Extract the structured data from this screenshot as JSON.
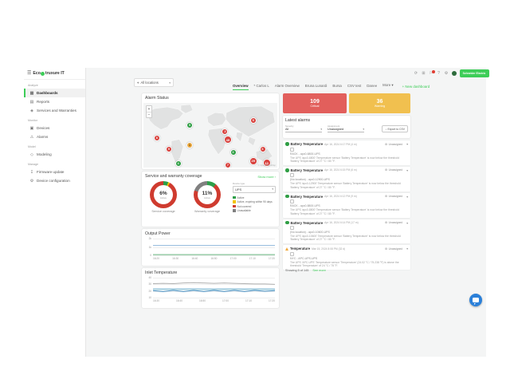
{
  "brand": {
    "pre": "Eco",
    "post": "truxure IT",
    "schneider_label": "Schneider Electric"
  },
  "topbar": {
    "icons": [
      {
        "name": "refresh-icon",
        "glyph": "⟳"
      },
      {
        "name": "apps-grid-icon",
        "glyph": "⊞"
      },
      {
        "name": "notifications-icon",
        "glyph": "⚐",
        "badge": true
      },
      {
        "name": "help-icon",
        "glyph": "?"
      },
      {
        "name": "settings-icon",
        "glyph": "⚙"
      },
      {
        "name": "avatar",
        "avatar": true
      }
    ]
  },
  "sidebar": {
    "sections": [
      {
        "label": "Analyze",
        "items": [
          {
            "label": "Dashboards",
            "icon": "dashboards",
            "glyph": "▦",
            "active": true
          },
          {
            "label": "Reports",
            "icon": "reports",
            "glyph": "▤"
          },
          {
            "label": "Services and Warranties",
            "icon": "services",
            "glyph": "◈"
          }
        ]
      },
      {
        "label": "Monitor",
        "items": [
          {
            "label": "Devices",
            "icon": "devices",
            "glyph": "▣"
          },
          {
            "label": "Alarms",
            "icon": "alarms",
            "glyph": "⚠"
          }
        ]
      },
      {
        "label": "Model",
        "items": [
          {
            "label": "Modeling",
            "icon": "modeling",
            "glyph": "◇"
          }
        ]
      },
      {
        "label": "Manage",
        "items": [
          {
            "label": "Firmware update",
            "icon": "firmware-update",
            "glyph": "↧"
          },
          {
            "label": "Device configuration",
            "icon": "device-configuration",
            "glyph": "⚙"
          }
        ]
      }
    ]
  },
  "toolbar": {
    "location_filter": "All locations",
    "tabs": [
      {
        "label": "Overview",
        "active": true
      },
      {
        "label": "* Carlos L"
      },
      {
        "label": "Alarm Overview"
      },
      {
        "label": "Bruna Lunardi"
      },
      {
        "label": "Bursa"
      },
      {
        "label": "CSV test"
      },
      {
        "label": "Danee"
      },
      {
        "label": "More ▾"
      }
    ],
    "new_dashboard": "+ New dashboard"
  },
  "alarm_status": {
    "title": "Alarm Status",
    "zoom_in": "+",
    "zoom_out": "−",
    "attribution": "© OpenStreetMap",
    "markers": [
      {
        "count": "8",
        "color": "red",
        "x": 10,
        "y": 54
      },
      {
        "count": "9",
        "color": "red",
        "x": 19,
        "y": 71
      },
      {
        "count": "1",
        "color": "orange",
        "x": 34.5,
        "y": 65
      },
      {
        "count": "5",
        "color": "green",
        "x": 34.5,
        "y": 34
      },
      {
        "count": "2",
        "color": "red",
        "x": 61,
        "y": 44
      },
      {
        "count": "49",
        "color": "red",
        "x": 63,
        "y": 57
      },
      {
        "count": "3",
        "color": "green",
        "x": 67,
        "y": 77
      },
      {
        "count": "5",
        "color": "red",
        "x": 82,
        "y": 27
      },
      {
        "count": "6",
        "color": "red",
        "x": 89,
        "y": 71
      },
      {
        "count": "29",
        "color": "red",
        "x": 82,
        "y": 90
      },
      {
        "count": "13",
        "color": "red",
        "x": 92,
        "y": 93
      },
      {
        "count": "4",
        "color": "green",
        "x": 26,
        "y": 94
      },
      {
        "count": "7",
        "color": "red",
        "x": 63,
        "y": 96
      }
    ]
  },
  "coverage": {
    "title": "Service and warranty coverage",
    "show_more": "Show more ›",
    "filter_label": "Device type",
    "filter_value": "UPS",
    "legend": [
      {
        "label": "Active",
        "color": "#2e9e49"
      },
      {
        "label": "Active, expiring within 90 days",
        "color": "#f3c300"
      },
      {
        "label": "Not covered",
        "color": "#cf3b2f"
      },
      {
        "label": "Unavailable",
        "color": "#808080"
      }
    ]
  },
  "alarm_summary": {
    "critical": {
      "count": "109",
      "label": "Critical"
    },
    "warning": {
      "count": "36",
      "label": "Warning"
    }
  },
  "latest_alarms": {
    "title": "Latest alarms",
    "filters": [
      {
        "label": "Severity",
        "value": "All"
      },
      {
        "label": "Assignment",
        "value": "Unassigned"
      }
    ],
    "export_label": "Export to CSV",
    "items": [
      {
        "severity": "cleared",
        "title": "Battery Temperature",
        "time": "Apr 16, 2024 6:17 PM (4 m)",
        "assignee": "Unassigned",
        "device": "RACK - apc0-6800-UPS",
        "description": "The UPS 'apc0-6800' Temperature sensor 'Battery Temperature' is now below the threshold 'Battery Temperature' of 27 °C / 80 °F."
      },
      {
        "severity": "cleared",
        "title": "Battery Temperature",
        "time": "Apr 16, 2024 6:15 PM (6 m)",
        "assignee": "Unassigned",
        "device": "(No location) - apc0-12900-UPS",
        "description": "The UPS 'apc0-12900' Temperature sensor 'Battery Temperature' is now below the threshold 'Battery Temperature' of 27 °C / 80 °F."
      },
      {
        "severity": "cleared",
        "title": "Battery Temperature",
        "time": "Apr 16, 2024 6:12 PM (9 m)",
        "assignee": "Unassigned",
        "device": "RACK - apc0-8800-UPS",
        "description": "The UPS 'apc0-8800' Temperature sensor 'Battery Temperature' is now below the threshold 'Battery Temperature' of 27 °C / 80 °F."
      },
      {
        "severity": "cleared",
        "title": "Battery Temperature",
        "time": "Apr 16, 2024 6:14 PM (17 m)",
        "assignee": "Unassigned",
        "device": "(No location) - apc0-10600-UPS",
        "description": "The UPS 'apc0-10600' Temperature sensor 'Battery Temperature' is now below the threshold 'Battery Temperature' of 27 °C / 80 °F."
      },
      {
        "severity": "warning",
        "title": "Temperature",
        "time": "Mar 15, 2024 8:08 PM (32 d)",
        "assignee": "Unassigned",
        "device": "NYC - APC-UPS-UPS",
        "description": "The UPS 'APC-UPS' Temperature sensor 'Temperature' (24.02 °C / 75.238 °F) is above the threshold 'Temperature' of 24 °C / 75 °F."
      }
    ],
    "footer": "Showing 5 of 145",
    "see_more": "See more"
  },
  "chart_data": {
    "service_coverage": {
      "type": "pie",
      "label": "Service coverage",
      "center_value": "6%",
      "center_sub": "Active",
      "segments": [
        {
          "name": "Active",
          "color": "#2e9e49",
          "pct": 6
        },
        {
          "name": "Active, expiring within 90 days",
          "color": "#f3c300",
          "pct": 2
        },
        {
          "name": "Not covered",
          "color": "#cf3b2f",
          "pct": 92
        }
      ]
    },
    "warranty_coverage": {
      "type": "pie",
      "label": "Warranty coverage",
      "center_value": "11%",
      "center_sub": "Active",
      "segments": [
        {
          "name": "Active",
          "color": "#2e9e49",
          "pct": 11
        },
        {
          "name": "Not covered",
          "color": "#cf3b2f",
          "pct": 69
        },
        {
          "name": "Unavailable",
          "color": "#808080",
          "pct": 20
        }
      ]
    },
    "output_power": {
      "type": "line",
      "title": "Output Power",
      "x": [
        "16:20",
        "16:30",
        "16:40",
        "16:50",
        "17:00",
        "17:10",
        "17:20"
      ],
      "ylim": [
        0,
        2000
      ],
      "yticks": [
        "2k",
        "1k",
        "0"
      ],
      "series": [
        {
          "name": "series-1",
          "color": "#8fb8dc",
          "values": [
            1180,
            1180,
            1182,
            1180,
            1180,
            1183,
            1180,
            1180,
            1180,
            1182,
            1180,
            1180,
            1180
          ]
        },
        {
          "name": "series-2",
          "color": "#66b47e",
          "values": [
            80,
            80,
            82,
            80,
            80,
            80,
            81,
            80,
            80,
            80,
            82,
            80,
            80
          ]
        }
      ]
    },
    "inlet_temperature": {
      "type": "line",
      "title": "Inlet Temperature",
      "x": [
        "16:30",
        "16:40",
        "16:50",
        "17:00",
        "17:10",
        "17:20"
      ],
      "ylim": [
        10,
        40
      ],
      "yticks": [
        "40",
        "30",
        "20",
        "10"
      ],
      "series": [
        {
          "name": "series-1",
          "color": "#b0b0b0",
          "values": [
            31,
            31.5,
            31,
            32,
            32.5,
            32,
            31.5,
            32,
            31.5,
            31,
            30.5,
            30.5,
            30
          ]
        },
        {
          "name": "series-2",
          "color": "#aacfe4",
          "values": [
            23.5,
            23.5,
            23.4,
            23.5,
            23.6,
            23.5,
            23.4,
            23.5,
            23.5,
            23.4,
            23.5,
            23.5,
            23.4
          ]
        },
        {
          "name": "series-3",
          "color": "#8fc3d4",
          "values": [
            22,
            22,
            22.1,
            22,
            22,
            21.9,
            22,
            22,
            22.1,
            22,
            22,
            22,
            22
          ]
        },
        {
          "name": "series-4",
          "color": "#4f93c4",
          "values": [
            20.5,
            19,
            21,
            19,
            21,
            19,
            21,
            19,
            21,
            19,
            21,
            19.5,
            20.5
          ]
        }
      ]
    }
  }
}
